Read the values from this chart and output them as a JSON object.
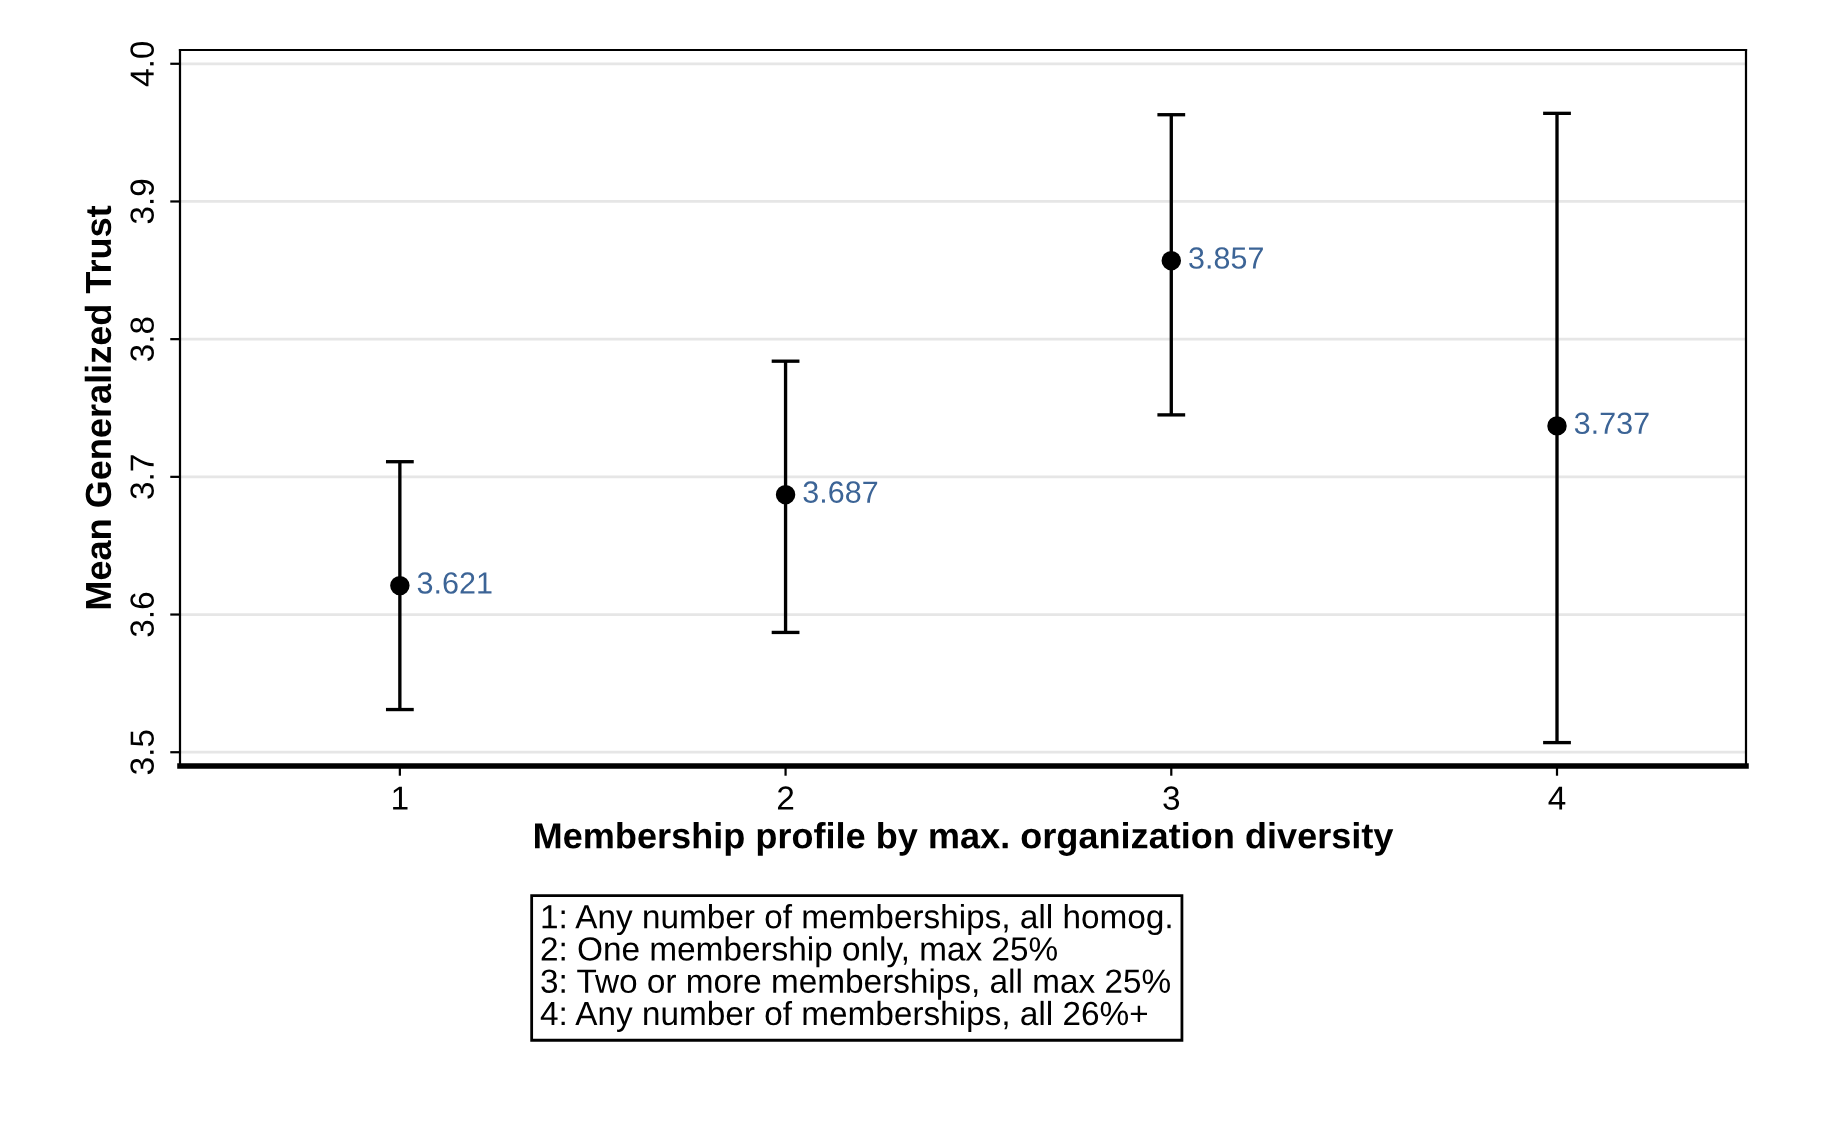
{
  "chart_data": {
    "type": "scatter",
    "xlabel": "Membership profile by max. organization diversity",
    "ylabel": "Mean Generalized Trust",
    "x": [
      1,
      2,
      3,
      4
    ],
    "values": [
      3.621,
      3.687,
      3.857,
      3.737
    ],
    "errors": [
      [
        3.531,
        3.711
      ],
      [
        3.587,
        3.784
      ],
      [
        3.745,
        3.963
      ],
      [
        3.507,
        3.964
      ]
    ],
    "color": "#000000",
    "marker": "circle",
    "data_labels": true,
    "xlim": [
      0.43,
      4.49
    ],
    "xticks": [
      1,
      2,
      3,
      4
    ],
    "ylim": [
      3.49,
      4.01
    ],
    "yticks": [
      {
        "value": 3.5,
        "label": "3.5"
      },
      {
        "value": 3.6,
        "label": "3.6"
      },
      {
        "value": 3.7,
        "label": "3.7"
      },
      {
        "value": 3.8,
        "label": "3.8"
      },
      {
        "value": 3.9,
        "label": "3.9"
      },
      {
        "value": 4.0,
        "label": "4.0"
      }
    ],
    "grid": "y",
    "annotations": [
      "1: Any number of memberships, all homog.\n2: One membership only, max 25%\n3: Two or more memberships, all max 25%\n4: Any number of memberships, all 26%+"
    ]
  }
}
